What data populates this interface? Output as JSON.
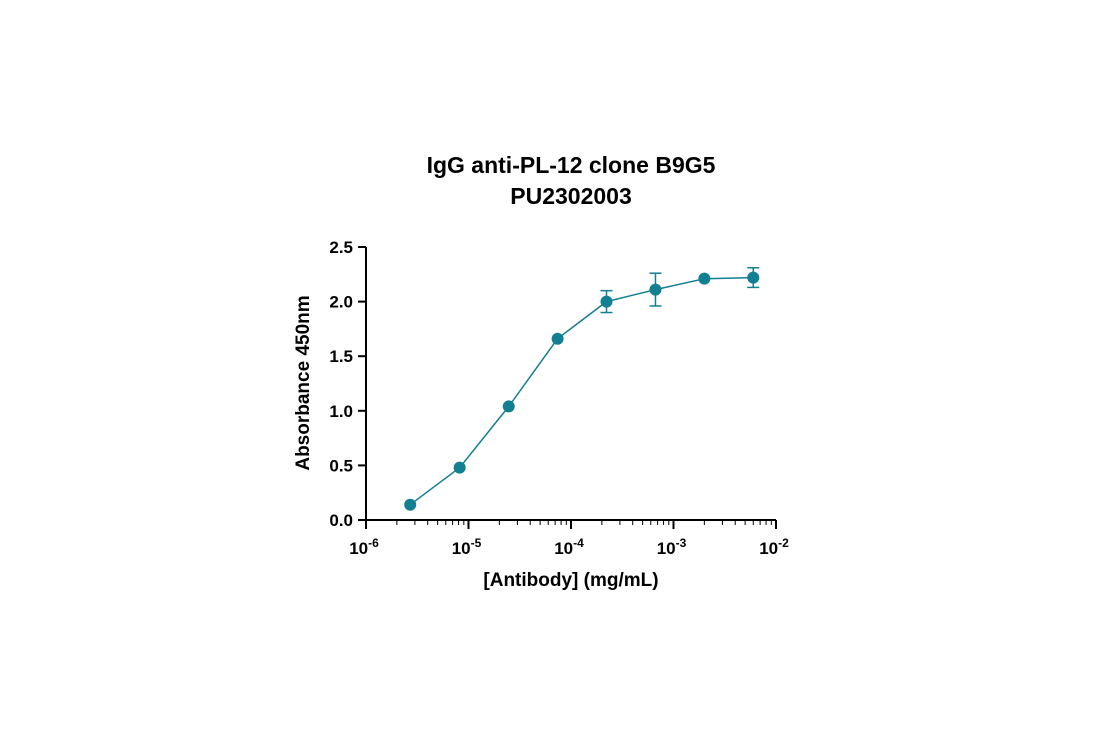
{
  "chart_data": {
    "type": "scatter",
    "title_lines": [
      "IgG anti-PL-12 clone B9G5",
      "PU2302003"
    ],
    "xlabel": "[Antibody] (mg/mL)",
    "ylabel": "Absorbance 450nm",
    "x_scale": "log10",
    "xlim": [
      1e-06,
      0.01
    ],
    "ylim": [
      0,
      2.5
    ],
    "x_ticks": [
      {
        "value": 1e-06,
        "base": "10",
        "exp": "-6"
      },
      {
        "value": 1e-05,
        "base": "10",
        "exp": "-5"
      },
      {
        "value": 0.0001,
        "base": "10",
        "exp": "-4"
      },
      {
        "value": 0.001,
        "base": "10",
        "exp": "-3"
      },
      {
        "value": 0.01,
        "base": "10",
        "exp": "-2"
      }
    ],
    "y_ticks": [
      "0.0",
      "0.5",
      "1.0",
      "1.5",
      "2.0",
      "2.5"
    ],
    "grid": false,
    "series": [
      {
        "color": "#137f92",
        "connected": true,
        "points": [
          {
            "x": 2.7e-06,
            "y": 0.14,
            "err": 0
          },
          {
            "x": 8.2e-06,
            "y": 0.48,
            "err": 0
          },
          {
            "x": 2.47e-05,
            "y": 1.04,
            "err": 0
          },
          {
            "x": 7.4e-05,
            "y": 1.66,
            "err": 0
          },
          {
            "x": 0.000222,
            "y": 2.0,
            "err": 0.1
          },
          {
            "x": 0.000667,
            "y": 2.11,
            "err": 0.15
          },
          {
            "x": 0.002,
            "y": 2.21,
            "err": 0
          },
          {
            "x": 0.006,
            "y": 2.22,
            "err": 0.09
          }
        ]
      }
    ]
  }
}
